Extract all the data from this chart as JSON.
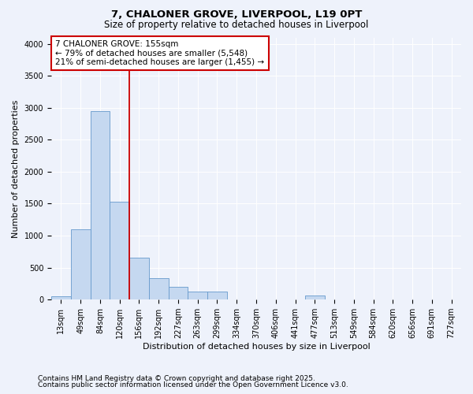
{
  "title1": "7, CHALONER GROVE, LIVERPOOL, L19 0PT",
  "title2": "Size of property relative to detached houses in Liverpool",
  "xlabel": "Distribution of detached houses by size in Liverpool",
  "ylabel": "Number of detached properties",
  "bar_labels": [
    "13sqm",
    "49sqm",
    "84sqm",
    "120sqm",
    "156sqm",
    "192sqm",
    "227sqm",
    "263sqm",
    "299sqm",
    "334sqm",
    "370sqm",
    "406sqm",
    "441sqm",
    "477sqm",
    "513sqm",
    "549sqm",
    "584sqm",
    "620sqm",
    "656sqm",
    "691sqm",
    "727sqm"
  ],
  "bar_values": [
    50,
    1100,
    2950,
    1530,
    650,
    340,
    200,
    130,
    130,
    0,
    0,
    0,
    0,
    70,
    0,
    0,
    0,
    0,
    0,
    0,
    0
  ],
  "bar_color": "#c5d8f0",
  "bar_edge_color": "#6699cc",
  "vline_color": "#cc0000",
  "annotation_text": "7 CHALONER GROVE: 155sqm\n← 79% of detached houses are smaller (5,548)\n21% of semi-detached houses are larger (1,455) →",
  "annotation_box_color": "white",
  "annotation_box_edge_color": "#cc0000",
  "ylim": [
    0,
    4100
  ],
  "yticks": [
    0,
    500,
    1000,
    1500,
    2000,
    2500,
    3000,
    3500,
    4000
  ],
  "footnote1": "Contains HM Land Registry data © Crown copyright and database right 2025.",
  "footnote2": "Contains public sector information licensed under the Open Government Licence v3.0.",
  "bg_color": "#eef2fb",
  "plot_bg_color": "#eef2fb",
  "title_fontsize": 9.5,
  "subtitle_fontsize": 8.5,
  "tick_fontsize": 7,
  "label_fontsize": 8,
  "footnote_fontsize": 6.5
}
